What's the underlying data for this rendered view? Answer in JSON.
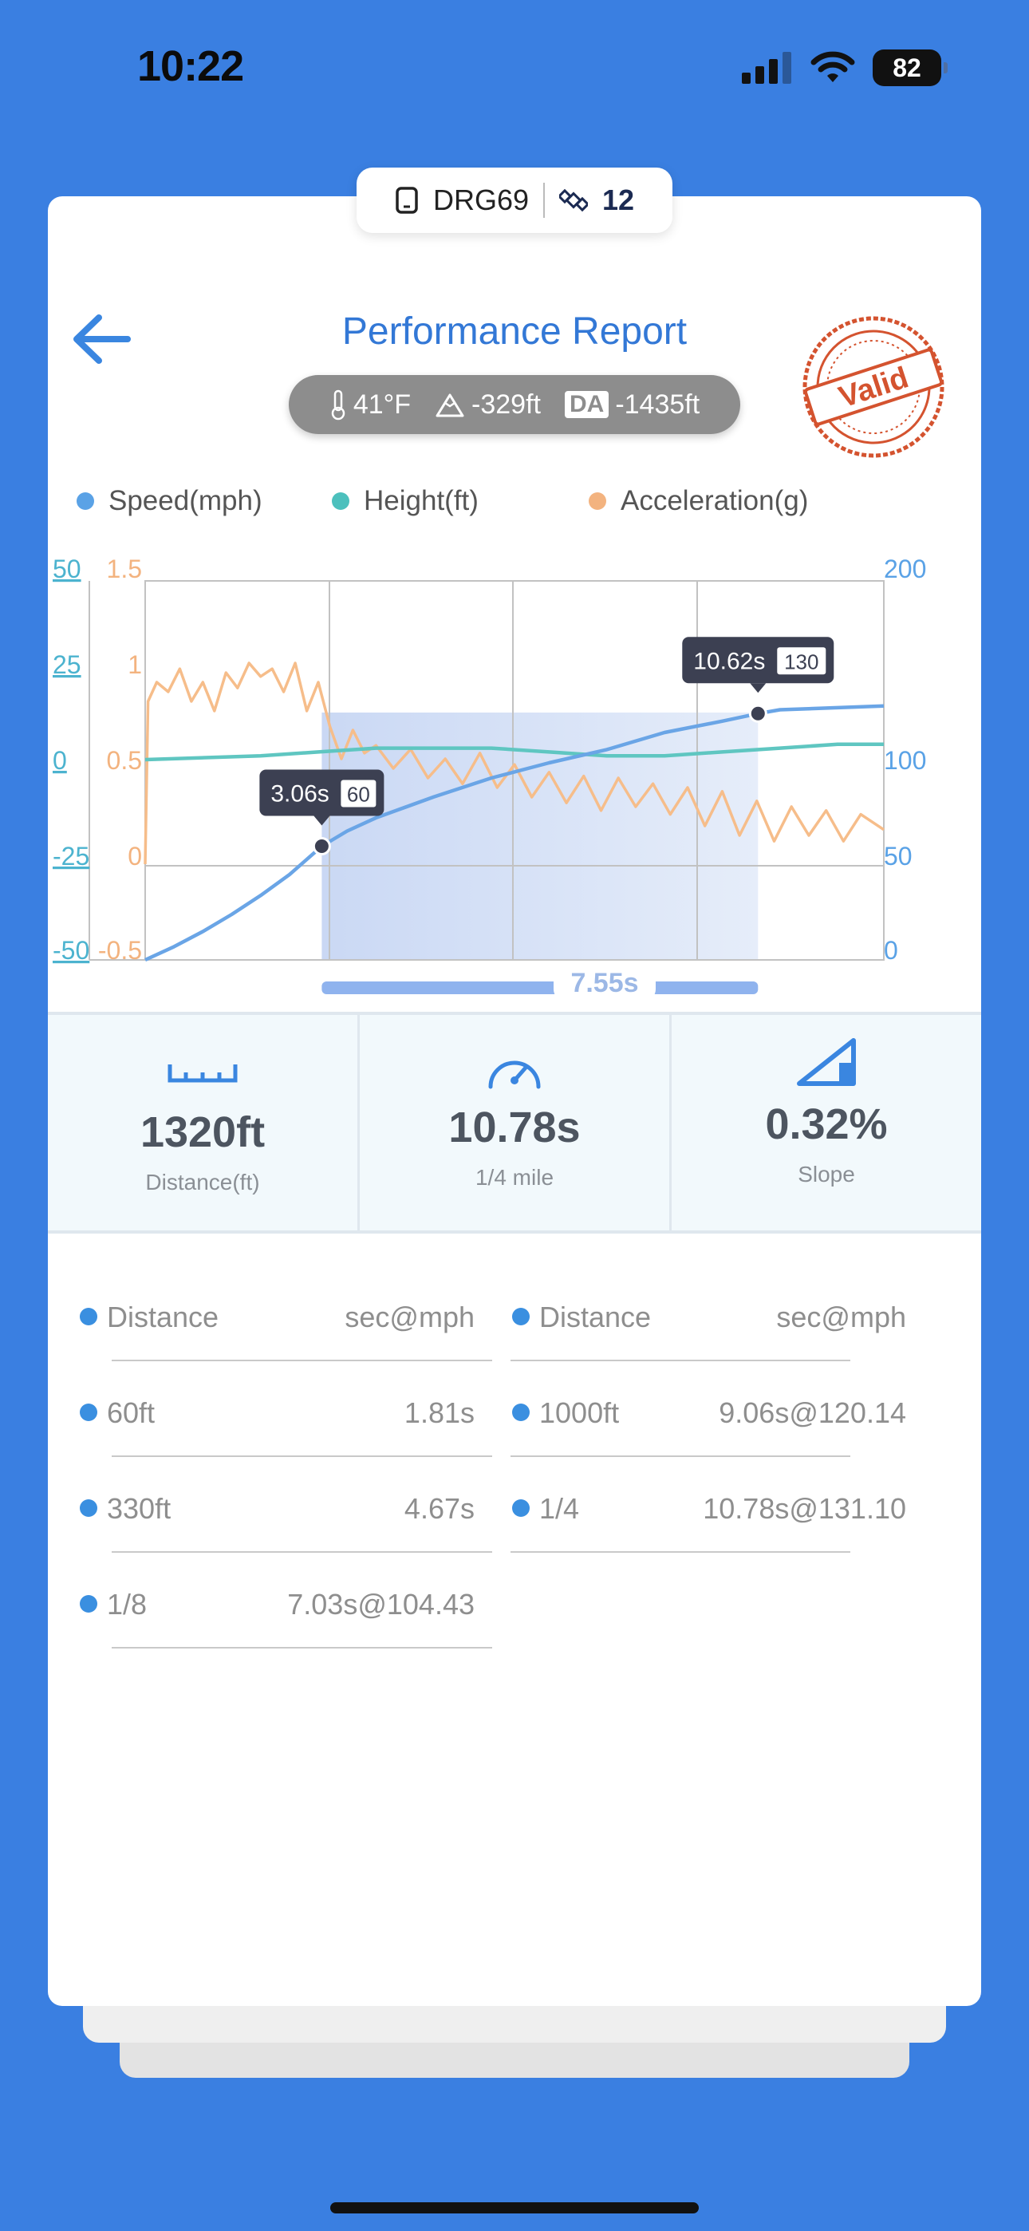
{
  "status_bar": {
    "time": "10:22",
    "battery": "82"
  },
  "device": {
    "name": "DRG69",
    "count": "12"
  },
  "header": {
    "title": "Performance Report",
    "stamp_text": "Valid"
  },
  "conditions": {
    "temperature": "41°F",
    "altitude": "-329ft",
    "da_label": "DA",
    "density_altitude": "-1435ft"
  },
  "legend": [
    {
      "label": "Speed(mph)",
      "color": "#5aa2e6"
    },
    {
      "label": "Height(ft)",
      "color": "#4cc0bd"
    },
    {
      "label": "Acceleration(g)",
      "color": "#f3b37f"
    }
  ],
  "chart_data": {
    "type": "line",
    "height_axis": {
      "ticks": [
        "50",
        "25",
        "0",
        "-25",
        "-50"
      ],
      "color": "#4cb3cf"
    },
    "accel_axis": {
      "ticks": [
        "1.5",
        "1",
        "0.5",
        "0",
        "-0.5"
      ],
      "color": "#f3b37f"
    },
    "speed_axis": {
      "ticks": [
        "200",
        "100",
        "50",
        "0"
      ],
      "color": "#5aa2e6"
    },
    "x_range_s": [
      0,
      12.8
    ],
    "series": [
      {
        "name": "Speed(mph)",
        "color": "#6aa5e6",
        "points": [
          [
            0,
            0
          ],
          [
            0.5,
            7
          ],
          [
            1,
            15
          ],
          [
            1.5,
            24
          ],
          [
            2,
            34
          ],
          [
            2.5,
            45
          ],
          [
            3.06,
            60
          ],
          [
            3.5,
            68
          ],
          [
            4,
            75
          ],
          [
            5,
            86
          ],
          [
            6,
            96
          ],
          [
            7,
            104
          ],
          [
            8,
            111
          ],
          [
            9,
            120
          ],
          [
            10,
            126
          ],
          [
            10.62,
            130
          ],
          [
            11,
            132
          ],
          [
            12.8,
            134
          ]
        ]
      },
      {
        "name": "Height(ft)",
        "color": "#5fc6c1",
        "points": [
          [
            0,
            0
          ],
          [
            2,
            1
          ],
          [
            3,
            2
          ],
          [
            4,
            3
          ],
          [
            5,
            3
          ],
          [
            6,
            3
          ],
          [
            7,
            2
          ],
          [
            8,
            1
          ],
          [
            9,
            1
          ],
          [
            10,
            2
          ],
          [
            11,
            3
          ],
          [
            12,
            4
          ],
          [
            12.8,
            4
          ]
        ]
      },
      {
        "name": "Acceleration(g)",
        "color": "#f6bd8a",
        "points": [
          [
            0,
            0
          ],
          [
            0.05,
            0.85
          ],
          [
            0.2,
            0.95
          ],
          [
            0.4,
            0.9
          ],
          [
            0.6,
            1.02
          ],
          [
            0.8,
            0.85
          ],
          [
            1,
            0.95
          ],
          [
            1.2,
            0.8
          ],
          [
            1.4,
            1.0
          ],
          [
            1.6,
            0.92
          ],
          [
            1.8,
            1.05
          ],
          [
            2,
            0.98
          ],
          [
            2.2,
            1.02
          ],
          [
            2.4,
            0.9
          ],
          [
            2.6,
            1.05
          ],
          [
            2.8,
            0.8
          ],
          [
            3,
            0.95
          ],
          [
            3.2,
            0.72
          ],
          [
            3.4,
            0.55
          ],
          [
            3.6,
            0.7
          ],
          [
            3.8,
            0.58
          ],
          [
            4,
            0.62
          ],
          [
            4.3,
            0.5
          ],
          [
            4.6,
            0.6
          ],
          [
            4.9,
            0.45
          ],
          [
            5.2,
            0.55
          ],
          [
            5.5,
            0.42
          ],
          [
            5.8,
            0.58
          ],
          [
            6.1,
            0.4
          ],
          [
            6.4,
            0.52
          ],
          [
            6.7,
            0.35
          ],
          [
            7,
            0.48
          ],
          [
            7.3,
            0.32
          ],
          [
            7.6,
            0.46
          ],
          [
            7.9,
            0.28
          ],
          [
            8.2,
            0.45
          ],
          [
            8.5,
            0.3
          ],
          [
            8.8,
            0.42
          ],
          [
            9.1,
            0.26
          ],
          [
            9.4,
            0.4
          ],
          [
            9.7,
            0.2
          ],
          [
            10,
            0.38
          ],
          [
            10.3,
            0.15
          ],
          [
            10.6,
            0.33
          ],
          [
            10.9,
            0.12
          ],
          [
            11.2,
            0.3
          ],
          [
            11.5,
            0.15
          ],
          [
            11.8,
            0.28
          ],
          [
            12.1,
            0.12
          ],
          [
            12.4,
            0.26
          ],
          [
            12.8,
            0.18
          ]
        ]
      }
    ],
    "markers": [
      {
        "time": "3.06s",
        "speed": "60",
        "t": 3.06,
        "v": 60
      },
      {
        "time": "10.62s",
        "speed": "130",
        "t": 10.62,
        "v": 130
      }
    ],
    "interval_label": "7.55s",
    "interval": [
      3.06,
      10.62
    ]
  },
  "metrics": [
    {
      "value": "1320ft",
      "label": "Distance(ft)",
      "icon": "ruler-icon"
    },
    {
      "value": "10.78s",
      "label": "1/4 mile",
      "icon": "speedometer-icon"
    },
    {
      "value": "0.32%",
      "label": "Slope",
      "icon": "slope-icon"
    }
  ],
  "table": {
    "headers": {
      "distance": "Distance",
      "value": "sec@mph"
    },
    "left": [
      {
        "distance": "60ft",
        "value": "1.81s"
      },
      {
        "distance": "330ft",
        "value": "4.67s"
      },
      {
        "distance": "1/8",
        "value": "7.03s@104.43"
      }
    ],
    "right": [
      {
        "distance": "1000ft",
        "value": "9.06s@120.14"
      },
      {
        "distance": "1/4",
        "value": "10.78s@131.10"
      }
    ]
  }
}
